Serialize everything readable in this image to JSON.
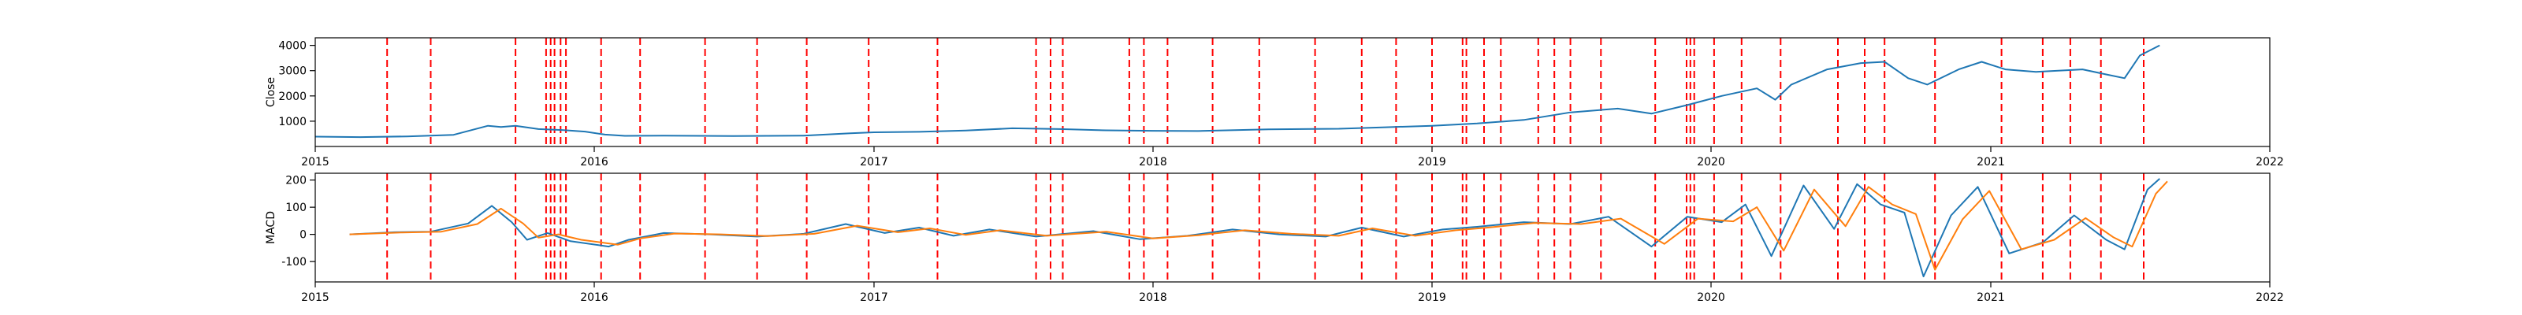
{
  "chart_data": [
    {
      "type": "line",
      "title": "",
      "xlabel": "",
      "ylabel": "Close",
      "xlim": [
        "2015-01-01",
        "2022-01-01"
      ],
      "ylim": [
        0,
        4300
      ],
      "x_ticks": [
        "2015",
        "2016",
        "2017",
        "2018",
        "2019",
        "2020",
        "2021",
        "2022"
      ],
      "y_ticks": [
        1000,
        2000,
        3000,
        4000
      ],
      "grid": false,
      "series": [
        {
          "color": "#1f77b4",
          "points": [
            [
              "2015-01-01",
              390
            ],
            [
              "2015-03-01",
              370
            ],
            [
              "2015-05-01",
              400
            ],
            [
              "2015-07-01",
              460
            ],
            [
              "2015-08-15",
              820
            ],
            [
              "2015-09-01",
              770
            ],
            [
              "2015-09-20",
              820
            ],
            [
              "2015-10-20",
              690
            ],
            [
              "2015-11-20",
              650
            ],
            [
              "2015-12-20",
              590
            ],
            [
              "2016-01-15",
              470
            ],
            [
              "2016-02-10",
              420
            ],
            [
              "2016-04-01",
              430
            ],
            [
              "2016-07-01",
              410
            ],
            [
              "2016-10-01",
              430
            ],
            [
              "2016-12-01",
              520
            ],
            [
              "2017-01-01",
              560
            ],
            [
              "2017-03-01",
              580
            ],
            [
              "2017-05-01",
              630
            ],
            [
              "2017-07-01",
              720
            ],
            [
              "2017-09-01",
              690
            ],
            [
              "2017-11-01",
              640
            ],
            [
              "2018-01-01",
              620
            ],
            [
              "2018-03-01",
              610
            ],
            [
              "2018-06-01",
              680
            ],
            [
              "2018-09-01",
              700
            ],
            [
              "2018-11-01",
              760
            ],
            [
              "2019-01-01",
              820
            ],
            [
              "2019-03-01",
              910
            ],
            [
              "2019-05-01",
              1050
            ],
            [
              "2019-07-01",
              1350
            ],
            [
              "2019-09-01",
              1500
            ],
            [
              "2019-10-15",
              1300
            ],
            [
              "2019-12-01",
              1640
            ],
            [
              "2020-01-15",
              2000
            ],
            [
              "2020-03-01",
              2300
            ],
            [
              "2020-03-25",
              1850
            ],
            [
              "2020-04-15",
              2450
            ],
            [
              "2020-06-01",
              3050
            ],
            [
              "2020-07-15",
              3300
            ],
            [
              "2020-08-15",
              3350
            ],
            [
              "2020-09-15",
              2700
            ],
            [
              "2020-10-10",
              2450
            ],
            [
              "2020-11-20",
              3050
            ],
            [
              "2020-12-20",
              3350
            ],
            [
              "2021-01-20",
              3050
            ],
            [
              "2021-03-01",
              2950
            ],
            [
              "2021-05-01",
              3050
            ],
            [
              "2021-06-01",
              2850
            ],
            [
              "2021-06-25",
              2700
            ],
            [
              "2021-07-15",
              3600
            ],
            [
              "2021-08-10",
              4000
            ]
          ]
        }
      ]
    },
    {
      "type": "line",
      "title": "",
      "xlabel": "",
      "ylabel": "MACD",
      "xlim": [
        "2015-01-01",
        "2022-01-01"
      ],
      "ylim": [
        -175,
        225
      ],
      "x_ticks": [
        "2015",
        "2016",
        "2017",
        "2018",
        "2019",
        "2020",
        "2021",
        "2022"
      ],
      "y_ticks": [
        -100,
        0,
        100,
        200
      ],
      "grid": false,
      "series": [
        {
          "color": "#1f77b4",
          "points": [
            [
              "2015-02-15",
              0
            ],
            [
              "2015-04-15",
              8
            ],
            [
              "2015-06-01",
              10
            ],
            [
              "2015-07-20",
              40
            ],
            [
              "2015-08-20",
              105
            ],
            [
              "2015-09-15",
              45
            ],
            [
              "2015-10-05",
              -20
            ],
            [
              "2015-11-01",
              5
            ],
            [
              "2015-12-01",
              -25
            ],
            [
              "2016-01-20",
              -45
            ],
            [
              "2016-02-15",
              -20
            ],
            [
              "2016-04-01",
              5
            ],
            [
              "2016-06-01",
              0
            ],
            [
              "2016-08-01",
              -8
            ],
            [
              "2016-10-01",
              2
            ],
            [
              "2016-11-25",
              38
            ],
            [
              "2017-01-15",
              5
            ],
            [
              "2017-03-01",
              25
            ],
            [
              "2017-04-15",
              -5
            ],
            [
              "2017-06-01",
              18
            ],
            [
              "2017-08-01",
              -8
            ],
            [
              "2017-10-15",
              12
            ],
            [
              "2017-12-15",
              -18
            ],
            [
              "2018-02-15",
              -5
            ],
            [
              "2018-04-15",
              18
            ],
            [
              "2018-06-15",
              0
            ],
            [
              "2018-08-15",
              -8
            ],
            [
              "2018-10-01",
              25
            ],
            [
              "2018-11-25",
              -8
            ],
            [
              "2019-01-15",
              18
            ],
            [
              "2019-03-01",
              28
            ],
            [
              "2019-05-01",
              45
            ],
            [
              "2019-07-01",
              38
            ],
            [
              "2019-08-20",
              65
            ],
            [
              "2019-10-15",
              -45
            ],
            [
              "2019-12-01",
              65
            ],
            [
              "2020-01-15",
              45
            ],
            [
              "2020-02-15",
              110
            ],
            [
              "2020-03-20",
              -80
            ],
            [
              "2020-05-01",
              180
            ],
            [
              "2020-06-10",
              20
            ],
            [
              "2020-07-10",
              185
            ],
            [
              "2020-08-10",
              110
            ],
            [
              "2020-09-10",
              80
            ],
            [
              "2020-10-05",
              -155
            ],
            [
              "2020-11-10",
              70
            ],
            [
              "2020-12-15",
              175
            ],
            [
              "2021-01-25",
              -70
            ],
            [
              "2021-03-10",
              -30
            ],
            [
              "2021-04-20",
              70
            ],
            [
              "2021-06-01",
              -20
            ],
            [
              "2021-06-25",
              -55
            ],
            [
              "2021-07-25",
              165
            ],
            [
              "2021-08-10",
              205
            ]
          ]
        },
        {
          "color": "#ff7f0e",
          "points": [
            [
              "2015-02-15",
              0
            ],
            [
              "2015-04-25",
              7
            ],
            [
              "2015-06-15",
              10
            ],
            [
              "2015-08-01",
              38
            ],
            [
              "2015-09-01",
              95
            ],
            [
              "2015-09-30",
              40
            ],
            [
              "2015-10-20",
              -12
            ],
            [
              "2015-11-15",
              0
            ],
            [
              "2015-12-15",
              -20
            ],
            [
              "2016-02-01",
              -38
            ],
            [
              "2016-03-01",
              -15
            ],
            [
              "2016-04-15",
              3
            ],
            [
              "2016-06-15",
              0
            ],
            [
              "2016-08-15",
              -6
            ],
            [
              "2016-10-15",
              2
            ],
            [
              "2016-12-10",
              32
            ],
            [
              "2017-02-01",
              8
            ],
            [
              "2017-03-15",
              22
            ],
            [
              "2017-05-01",
              -2
            ],
            [
              "2017-06-15",
              15
            ],
            [
              "2017-08-15",
              -5
            ],
            [
              "2017-11-01",
              10
            ],
            [
              "2018-01-01",
              -15
            ],
            [
              "2018-03-01",
              -3
            ],
            [
              "2018-05-01",
              15
            ],
            [
              "2018-07-01",
              2
            ],
            [
              "2018-09-01",
              -5
            ],
            [
              "2018-10-15",
              22
            ],
            [
              "2018-12-10",
              -5
            ],
            [
              "2019-02-01",
              15
            ],
            [
              "2019-03-15",
              25
            ],
            [
              "2019-05-15",
              42
            ],
            [
              "2019-07-15",
              38
            ],
            [
              "2019-09-05",
              58
            ],
            [
              "2019-11-01",
              -35
            ],
            [
              "2019-12-15",
              58
            ],
            [
              "2020-01-30",
              48
            ],
            [
              "2020-03-01",
              100
            ],
            [
              "2020-04-05",
              -60
            ],
            [
              "2020-05-15",
              165
            ],
            [
              "2020-06-25",
              30
            ],
            [
              "2020-07-25",
              175
            ],
            [
              "2020-08-25",
              110
            ],
            [
              "2020-09-25",
              75
            ],
            [
              "2020-10-20",
              -130
            ],
            [
              "2020-11-25",
              55
            ],
            [
              "2020-12-30",
              160
            ],
            [
              "2021-02-10",
              -55
            ],
            [
              "2021-03-25",
              -20
            ],
            [
              "2021-05-05",
              60
            ],
            [
              "2021-06-10",
              -10
            ],
            [
              "2021-07-05",
              -45
            ],
            [
              "2021-08-05",
              150
            ],
            [
              "2021-08-20",
              195
            ]
          ]
        }
      ]
    }
  ],
  "signal_dates": [
    "2015-04-05",
    "2015-06-01",
    "2015-09-20",
    "2015-10-30",
    "2015-11-05",
    "2015-11-10",
    "2015-11-18",
    "2015-11-25",
    "2016-01-10",
    "2016-03-01",
    "2016-05-25",
    "2016-08-01",
    "2016-10-05",
    "2016-12-25",
    "2017-03-25",
    "2017-08-01",
    "2017-08-20",
    "2017-09-05",
    "2017-12-01",
    "2017-12-20",
    "2018-01-20",
    "2018-03-20",
    "2018-05-20",
    "2018-08-01",
    "2018-10-01",
    "2018-11-15",
    "2019-01-01",
    "2019-02-10",
    "2019-02-15",
    "2019-03-10",
    "2019-04-01",
    "2019-05-20",
    "2019-06-10",
    "2019-07-01",
    "2019-08-10",
    "2019-10-20",
    "2019-11-30",
    "2019-12-05",
    "2019-12-10",
    "2020-01-05",
    "2020-02-10",
    "2020-04-01",
    "2020-06-15",
    "2020-07-20",
    "2020-08-15",
    "2020-10-20",
    "2021-01-15",
    "2021-03-10",
    "2021-04-15",
    "2021-05-25",
    "2021-07-20"
  ],
  "signal_color": "#ff0000"
}
